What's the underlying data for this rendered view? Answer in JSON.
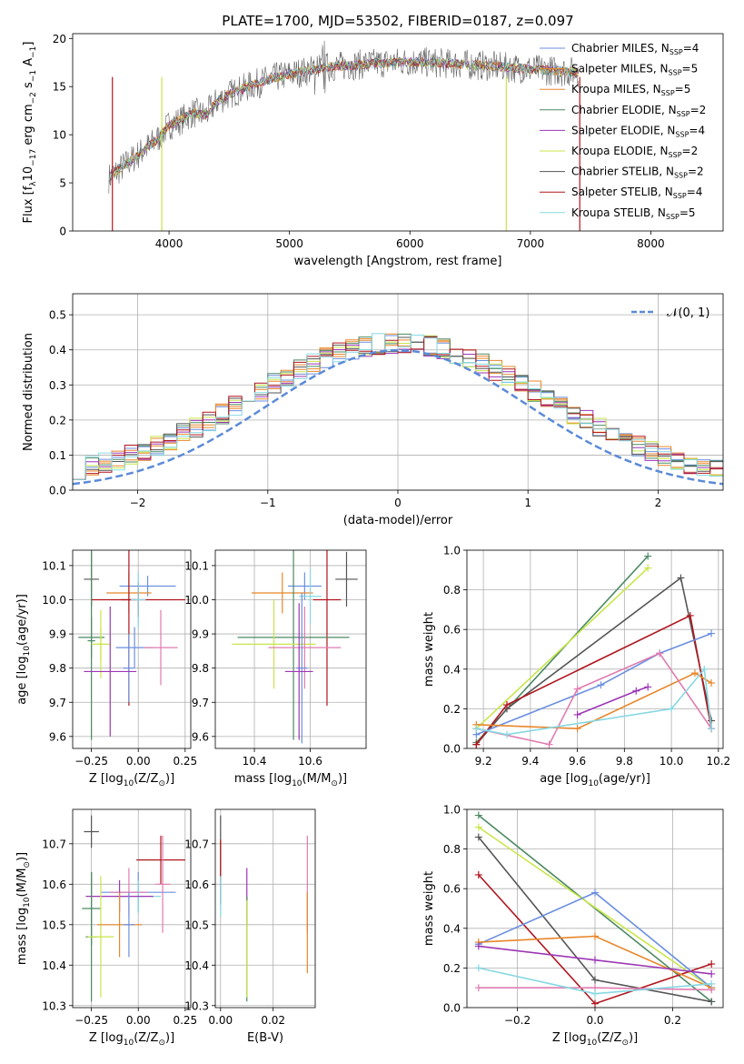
{
  "figure": {
    "title": "PLATE=1700, MJD=53502, FIBERID=0187, z=0.097"
  },
  "colors": {
    "Chabrier MILES": "#6b8fe0",
    "Salpeter MILES": "#e8862a",
    "Kroupa MILES": "#e8862a",
    "Chabrier ELODIE": "#4c8a63",
    "Salpeter ELODIE": "#9d36b5",
    "Kroupa ELODIE": "#c8e64a",
    "Chabrier STELIB": "#555555",
    "Salpeter STELIB": "#b0161e",
    "Kroupa STELIB": "#86d8e2",
    "pink": "#e07cb0",
    "data": "#888888",
    "gaussian": "#5b8ad8",
    "grid": "#b0b0b0"
  },
  "chart_data": [
    {
      "type": "line",
      "title": "PLATE=1700, MJD=53502, FIBERID=0187, z=0.097",
      "xlabel": "wavelength [Angstrom, rest frame]",
      "ylabel_parts": [
        "Flux [f",
        "λ",
        "10",
        "−17",
        " erg cm",
        "−2",
        " s",
        "−1",
        " A",
        "−1",
        "]"
      ],
      "xlim": [
        3200,
        8600
      ],
      "ylim": [
        0,
        20.5
      ],
      "xticks": [
        "4000",
        "5000",
        "6000",
        "7000",
        "8000"
      ],
      "xtick_values": [
        4000,
        5000,
        6000,
        7000,
        8000
      ],
      "yticks": [
        "0",
        "5",
        "10",
        "15",
        "20"
      ],
      "ytick_values": [
        0,
        5,
        10,
        15,
        20
      ],
      "continuum": {
        "x": [
          3500,
          3600,
          3700,
          3800,
          3900,
          4000,
          4100,
          4200,
          4300,
          4400,
          4500,
          4700,
          4900,
          5100,
          5300,
          5500,
          5700,
          6000,
          6300,
          6600,
          7000,
          7400
        ],
        "y": [
          5.5,
          6.5,
          7.5,
          8.5,
          9.5,
          11.0,
          11.5,
          12.3,
          12.0,
          13.5,
          14.2,
          15.2,
          16.0,
          16.5,
          17.0,
          17.2,
          17.4,
          17.6,
          17.4,
          17.2,
          16.8,
          16.5
        ]
      },
      "legend_placement": "top-right",
      "series": [
        {
          "name": "Chabrier MILES",
          "nssp": "4"
        },
        {
          "name": "Salpeter MILES",
          "nssp": "5"
        },
        {
          "name": "Kroupa MILES",
          "nssp": "5"
        },
        {
          "name": "Chabrier ELODIE",
          "nssp": "2"
        },
        {
          "name": "Salpeter ELODIE",
          "nssp": "4"
        },
        {
          "name": "Kroupa ELODIE",
          "nssp": "2"
        },
        {
          "name": "Chabrier STELIB",
          "nssp": "2"
        },
        {
          "name": "Salpeter STELIB",
          "nssp": "4"
        },
        {
          "name": "Kroupa STELIB",
          "nssp": "5"
        }
      ]
    },
    {
      "type": "area",
      "xlabel": "(data-model)/error",
      "ylabel": "Normed distribution",
      "xlim": [
        -2.5,
        2.5
      ],
      "ylim": [
        0,
        0.56
      ],
      "xticks": [
        "−2",
        "−1",
        "0",
        "1",
        "2"
      ],
      "xtick_values": [
        -2,
        -1,
        0,
        1,
        2
      ],
      "yticks": [
        "0.0",
        "0.1",
        "0.2",
        "0.3",
        "0.4",
        "0.5"
      ],
      "ytick_values": [
        0,
        0.1,
        0.2,
        0.3,
        0.4,
        0.5
      ],
      "legend_label": "𝒩(0, 1)",
      "legend_placement": "top-right",
      "bin_width": 0.1
    },
    {
      "type": "scatter",
      "xlabel_parts": [
        "Z [log",
        "10",
        "(Z/Z",
        "⊙",
        ")]"
      ],
      "ylabel_parts": [
        "age  [log",
        "10",
        "(age/yr)]"
      ],
      "xlim": [
        -0.35,
        0.28
      ],
      "ylim": [
        9.565,
        10.145
      ],
      "xticks": [
        "−0.25",
        "0.00",
        "0.25"
      ],
      "xtick_values": [
        -0.25,
        0,
        0.25
      ],
      "yticks": [
        "9.6",
        "9.7",
        "9.8",
        "9.9",
        "10.0",
        "10.1"
      ],
      "ytick_values": [
        9.6,
        9.7,
        9.8,
        9.9,
        10.0,
        10.1
      ],
      "points": [
        {
          "x": -0.25,
          "y": 10.06,
          "xerr": 0.04,
          "yerr": 0.08,
          "c": "Chabrier STELIB"
        },
        {
          "x": 0.05,
          "y": 10.04,
          "xerr": 0.15,
          "yerr": 0.03,
          "c": "Chabrier MILES"
        },
        {
          "x": -0.05,
          "y": 10.02,
          "xerr": 0.12,
          "yerr": 0.06,
          "c": "Kroupa MILES"
        },
        {
          "x": 0.0,
          "y": 10.0,
          "xerr": 0.25,
          "yerr": 0.05,
          "c": "Salpeter STELIB"
        },
        {
          "x": -0.05,
          "y": 10.0,
          "xerr": 0.04,
          "yerr": 0.31,
          "c": "Salpeter STELIB"
        },
        {
          "x": 0.0,
          "y": 10.0,
          "xerr": 0.04,
          "yerr": 0.08,
          "c": "Kroupa STELIB"
        },
        {
          "x": -0.25,
          "y": 9.88,
          "xerr": 0.02,
          "yerr": 0.29,
          "c": "Chabrier ELODIE"
        },
        {
          "x": -0.25,
          "y": 9.89,
          "xerr": 0.07,
          "yerr": 0.06,
          "c": "Chabrier ELODIE"
        },
        {
          "x": -0.2,
          "y": 9.87,
          "xerr": 0.05,
          "yerr": 0.1,
          "c": "Kroupa ELODIE"
        },
        {
          "x": -0.2,
          "y": 9.87,
          "xerr": 0.02,
          "yerr": 0.05,
          "c": "Kroupa ELODIE"
        },
        {
          "x": -0.02,
          "y": 9.86,
          "xerr": 0.1,
          "yerr": 0.06,
          "c": "Chabrier MILES"
        },
        {
          "x": -0.05,
          "y": 9.8,
          "xerr": 0.03,
          "yerr": 0.1,
          "c": "Chabrier MILES"
        },
        {
          "x": 0.12,
          "y": 9.86,
          "xerr": 0.09,
          "yerr": 0.11,
          "c": "pink"
        },
        {
          "x": -0.15,
          "y": 9.79,
          "xerr": 0.14,
          "yerr": 0.19,
          "c": "Salpeter ELODIE"
        }
      ]
    },
    {
      "type": "scatter",
      "xlabel_parts": [
        "mass [log",
        "10",
        "(M/M",
        "⊙",
        ")]"
      ],
      "xlim": [
        10.26,
        10.8
      ],
      "ylim": [
        9.565,
        10.145
      ],
      "xticks": [
        "10.4",
        "10.6"
      ],
      "xtick_values": [
        10.4,
        10.6
      ],
      "yticks": [
        "9.6",
        "9.7",
        "9.8",
        "9.9",
        "10.0",
        "10.1"
      ],
      "ytick_values": [
        9.6,
        9.7,
        9.8,
        9.9,
        10.0,
        10.1
      ],
      "points": [
        {
          "x": 10.73,
          "y": 10.06,
          "xerr": 0.04,
          "yerr": 0.08,
          "c": "Chabrier STELIB"
        },
        {
          "x": 10.58,
          "y": 10.04,
          "xerr": 0.06,
          "yerr": 0.04,
          "c": "Chabrier MILES"
        },
        {
          "x": 10.5,
          "y": 10.02,
          "xerr": 0.11,
          "yerr": 0.06,
          "c": "Kroupa MILES"
        },
        {
          "x": 10.6,
          "y": 10.01,
          "xerr": 0.04,
          "yerr": 0.08,
          "c": "Kroupa STELIB"
        },
        {
          "x": 10.66,
          "y": 10.0,
          "xerr": 0.05,
          "yerr": 0.31,
          "c": "Salpeter STELIB"
        },
        {
          "x": 10.54,
          "y": 9.89,
          "xerr": 0.2,
          "yerr": 0.3,
          "c": "Chabrier ELODIE"
        },
        {
          "x": 10.47,
          "y": 9.87,
          "xerr": 0.15,
          "yerr": 0.13,
          "c": "Kroupa ELODIE"
        },
        {
          "x": 10.58,
          "y": 9.86,
          "xerr": 0.13,
          "yerr": 0.12,
          "c": "pink"
        },
        {
          "x": 10.57,
          "y": 9.8,
          "xerr": 0.02,
          "yerr": 0.22,
          "c": "Chabrier MILES"
        },
        {
          "x": 10.56,
          "y": 9.79,
          "xerr": 0.05,
          "yerr": 0.2,
          "c": "Salpeter ELODIE"
        }
      ]
    },
    {
      "type": "line",
      "xlabel_parts": [
        "age  [log",
        "10",
        "(age/yr)]"
      ],
      "ylabel": "mass weight",
      "xlim": [
        9.13,
        10.22
      ],
      "ylim": [
        0,
        1.0
      ],
      "xticks": [
        "9.2",
        "9.4",
        "9.6",
        "9.8",
        "10.0",
        "10.2"
      ],
      "xtick_values": [
        9.2,
        9.4,
        9.6,
        9.8,
        10.0,
        10.2
      ],
      "yticks": [
        "0.0",
        "0.2",
        "0.4",
        "0.6",
        "0.8",
        "1.0"
      ],
      "ytick_values": [
        0,
        0.2,
        0.4,
        0.6,
        0.8,
        1.0
      ],
      "series": [
        {
          "c": "Chabrier ELODIE",
          "x": [
            9.17,
            9.9
          ],
          "y": [
            0.03,
            0.97
          ]
        },
        {
          "c": "Kroupa ELODIE",
          "x": [
            9.17,
            9.9
          ],
          "y": [
            0.1,
            0.91
          ]
        },
        {
          "c": "Chabrier STELIB",
          "x": [
            9.17,
            9.3,
            10.04,
            10.17
          ],
          "y": [
            0.02,
            0.2,
            0.86,
            0.14
          ]
        },
        {
          "c": "Salpeter STELIB",
          "x": [
            9.17,
            9.3,
            10.08,
            10.17
          ],
          "y": [
            0.02,
            0.22,
            0.67,
            0.1
          ]
        },
        {
          "c": "Chabrier MILES",
          "x": [
            9.17,
            9.7,
            9.95,
            10.17
          ],
          "y": [
            0.07,
            0.32,
            0.48,
            0.58
          ]
        },
        {
          "c": "Kroupa MILES",
          "x": [
            9.17,
            9.6,
            10.1,
            10.17
          ],
          "y": [
            0.12,
            0.1,
            0.38,
            0.33
          ]
        },
        {
          "c": "pink",
          "x": [
            9.17,
            9.48,
            9.6,
            9.95,
            10.17
          ],
          "y": [
            0.1,
            0.02,
            0.3,
            0.48,
            0.1
          ]
        },
        {
          "c": "Salpeter ELODIE",
          "x": [
            9.6,
            9.85,
            9.9
          ],
          "y": [
            0.17,
            0.29,
            0.31
          ]
        },
        {
          "c": "Kroupa STELIB",
          "x": [
            9.17,
            9.3,
            10.0,
            10.14,
            10.17
          ],
          "y": [
            0.1,
            0.07,
            0.2,
            0.4,
            0.1
          ]
        }
      ]
    },
    {
      "type": "scatter",
      "xlabel_parts": [
        "Z [log",
        "10",
        "(Z/Z",
        "⊙",
        ")]"
      ],
      "ylabel_parts": [
        "mass [log",
        "10",
        "(M/M",
        "⊙",
        ")]"
      ],
      "xlim": [
        -0.35,
        0.28
      ],
      "ylim": [
        10.295,
        10.785
      ],
      "xticks": [
        "−0.25",
        "0.00",
        "0.25"
      ],
      "xtick_values": [
        -0.25,
        0,
        0.25
      ],
      "yticks": [
        "10.3",
        "10.4",
        "10.5",
        "10.6",
        "10.7"
      ],
      "ytick_values": [
        10.3,
        10.4,
        10.5,
        10.6,
        10.7
      ],
      "points": [
        {
          "x": -0.25,
          "y": 10.73,
          "xerr": 0.04,
          "yerr": 0.04,
          "c": "Chabrier STELIB"
        },
        {
          "x": 0.12,
          "y": 10.66,
          "xerr": 0.13,
          "yerr": 0.06,
          "c": "Salpeter STELIB"
        },
        {
          "x": 0.0,
          "y": 10.58,
          "xerr": 0.2,
          "yerr": 0.05,
          "c": "Chabrier MILES"
        },
        {
          "x": 0.0,
          "y": 10.57,
          "xerr": 0.12,
          "yerr": 0.04,
          "c": "Kroupa STELIB"
        },
        {
          "x": -0.05,
          "y": 10.58,
          "xerr": 0.1,
          "yerr": 0.06,
          "c": "pink"
        },
        {
          "x": 0.13,
          "y": 10.6,
          "xerr": 0.04,
          "yerr": 0.12,
          "c": "pink"
        },
        {
          "x": -0.1,
          "y": 10.57,
          "xerr": 0.18,
          "yerr": 0.04,
          "c": "Salpeter ELODIE"
        },
        {
          "x": -0.25,
          "y": 10.54,
          "xerr": 0.05,
          "yerr": 0.09,
          "c": "Chabrier ELODIE"
        },
        {
          "x": -0.25,
          "y": 10.47,
          "xerr": 0.03,
          "yerr": 0.16,
          "c": "Chabrier ELODIE"
        },
        {
          "x": -0.2,
          "y": 10.47,
          "xerr": 0.07,
          "yerr": 0.15,
          "c": "Kroupa ELODIE"
        },
        {
          "x": -0.1,
          "y": 10.5,
          "xerr": 0.12,
          "yerr": 0.08,
          "c": "Kroupa MILES"
        },
        {
          "x": -0.05,
          "y": 10.5,
          "xerr": 0.03,
          "yerr": 0.08,
          "c": "Chabrier MILES"
        }
      ]
    },
    {
      "type": "scatter",
      "xlabel": "E(B-V)",
      "xlim": [
        -0.002,
        0.036
      ],
      "ylim": [
        10.295,
        10.785
      ],
      "xticks": [
        "0.00",
        "0.02"
      ],
      "xtick_values": [
        0,
        0.02
      ],
      "yticks": [
        "10.3",
        "10.4",
        "10.5",
        "10.6",
        "10.7"
      ],
      "ytick_values": [
        10.3,
        10.4,
        10.5,
        10.6,
        10.7
      ],
      "points": [
        {
          "x": 0.0,
          "y": 10.66,
          "xerr": 0,
          "yerr": 0.11,
          "c": "Chabrier STELIB"
        },
        {
          "x": 0.0,
          "y": 10.66,
          "xerr": 0,
          "yerr": 0.05,
          "c": "Salpeter STELIB"
        },
        {
          "x": 0.0,
          "y": 10.57,
          "xerr": 0,
          "yerr": 0.05,
          "c": "Kroupa STELIB"
        },
        {
          "x": 0.01,
          "y": 10.57,
          "xerr": 0,
          "yerr": 0.07,
          "c": "Salpeter ELODIE"
        },
        {
          "x": 0.01,
          "y": 10.44,
          "xerr": 0,
          "yerr": 0.13,
          "c": "Chabrier ELODIE"
        },
        {
          "x": 0.01,
          "y": 10.44,
          "xerr": 0,
          "yerr": 0.12,
          "c": "Kroupa ELODIE"
        },
        {
          "x": 0.033,
          "y": 10.6,
          "xerr": 0,
          "yerr": 0.12,
          "c": "pink"
        },
        {
          "x": 0.033,
          "y": 10.48,
          "xerr": 0,
          "yerr": 0.1,
          "c": "Kroupa MILES"
        }
      ]
    },
    {
      "type": "line",
      "xlabel_parts": [
        "Z [log",
        "10",
        "(Z/Z",
        "⊙",
        ")]"
      ],
      "ylabel": "mass weight",
      "xlim": [
        -0.33,
        0.33
      ],
      "ylim": [
        0,
        1.0
      ],
      "xticks": [
        "−0.2",
        "0.0",
        "0.2"
      ],
      "xtick_values": [
        -0.2,
        0,
        0.2
      ],
      "yticks": [
        "0.0",
        "0.2",
        "0.4",
        "0.6",
        "0.8",
        "1.0"
      ],
      "ytick_values": [
        0,
        0.2,
        0.4,
        0.6,
        0.8,
        1.0
      ],
      "series": [
        {
          "c": "Chabrier ELODIE",
          "x": [
            -0.3,
            0.3
          ],
          "y": [
            0.97,
            0.03
          ]
        },
        {
          "c": "Kroupa ELODIE",
          "x": [
            -0.3,
            0.3
          ],
          "y": [
            0.91,
            0.1
          ]
        },
        {
          "c": "Chabrier STELIB",
          "x": [
            -0.3,
            0.0,
            0.3
          ],
          "y": [
            0.86,
            0.14,
            0.03
          ]
        },
        {
          "c": "Salpeter STELIB",
          "x": [
            -0.3,
            0.0,
            0.3
          ],
          "y": [
            0.67,
            0.02,
            0.22
          ]
        },
        {
          "c": "Chabrier MILES",
          "x": [
            -0.3,
            0.0,
            0.3
          ],
          "y": [
            0.32,
            0.58,
            0.1
          ]
        },
        {
          "c": "Kroupa MILES",
          "x": [
            -0.3,
            0.0,
            0.3
          ],
          "y": [
            0.33,
            0.36,
            0.1
          ]
        },
        {
          "c": "Salpeter ELODIE",
          "x": [
            -0.3,
            0.0,
            0.3
          ],
          "y": [
            0.31,
            0.24,
            0.17
          ]
        },
        {
          "c": "pink",
          "x": [
            -0.3,
            0.0,
            0.3
          ],
          "y": [
            0.1,
            0.1,
            0.09
          ]
        },
        {
          "c": "Kroupa STELIB",
          "x": [
            -0.3,
            0.0,
            0.3
          ],
          "y": [
            0.2,
            0.07,
            0.12
          ]
        }
      ]
    }
  ]
}
